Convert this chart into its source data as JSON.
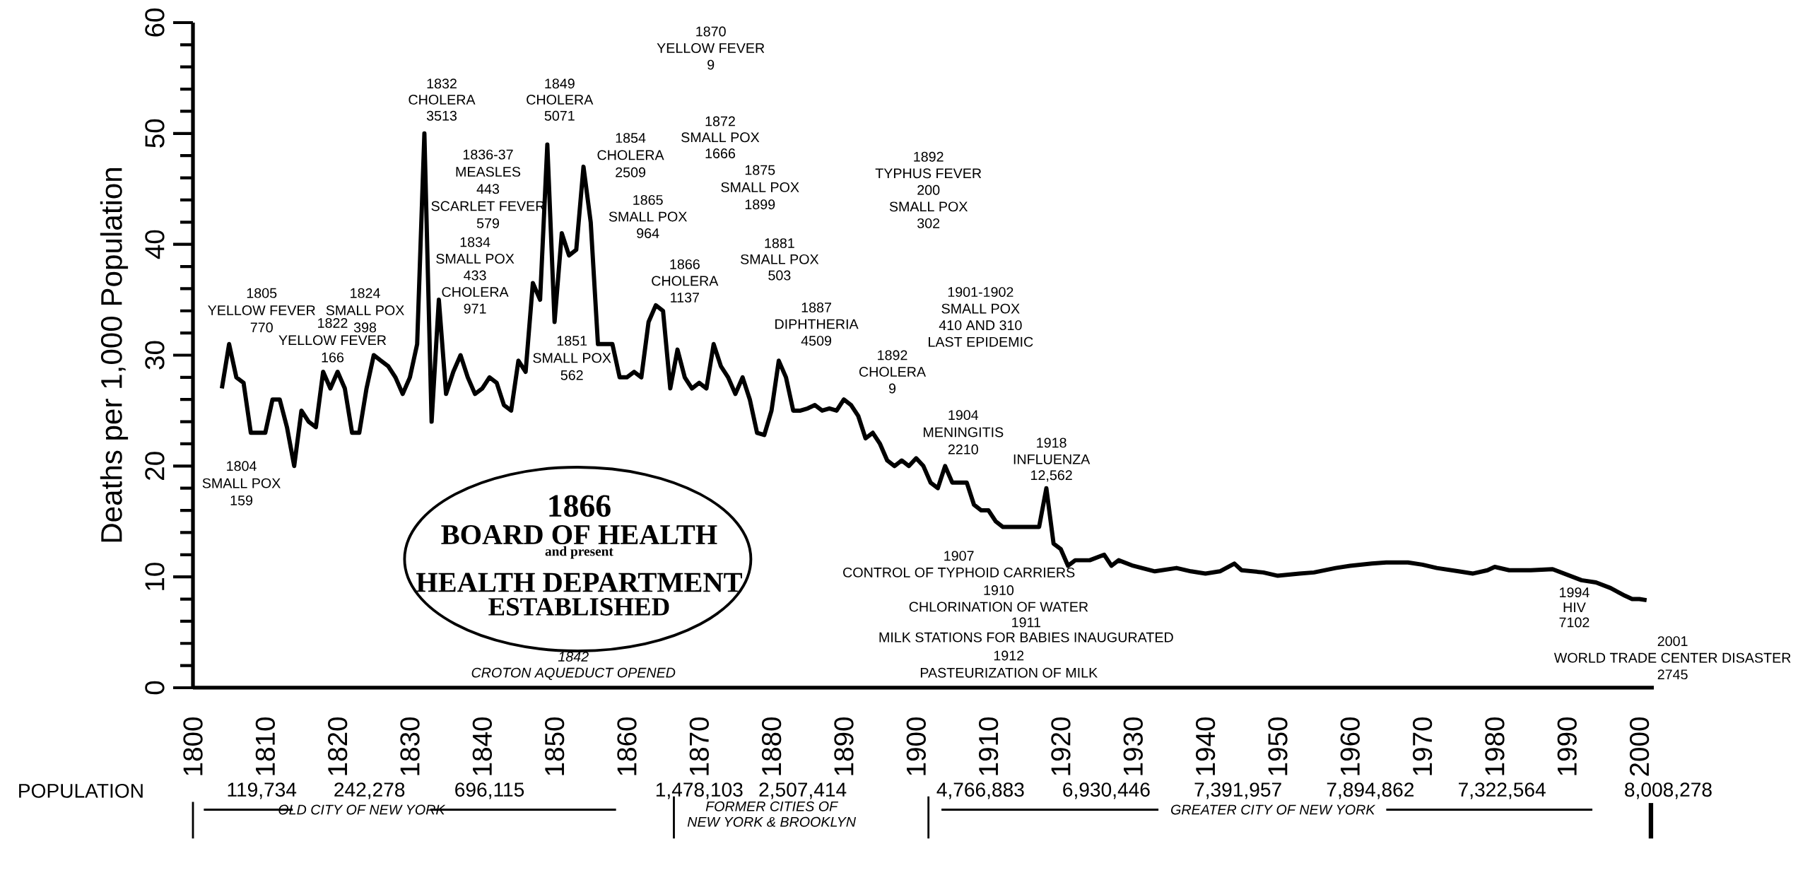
{
  "chart_data": {
    "type": "line",
    "ylabel": "Deaths per 1,000 Population",
    "color": "#000000",
    "xlim": [
      1800,
      2002
    ],
    "ylim": [
      0,
      60
    ],
    "xticks": [
      1800,
      1810,
      1820,
      1830,
      1840,
      1850,
      1860,
      1870,
      1880,
      1890,
      1900,
      1910,
      1920,
      1930,
      1940,
      1950,
      1960,
      1970,
      1980,
      1990,
      2000
    ],
    "yticks": [
      0,
      10,
      20,
      30,
      40,
      50,
      60
    ],
    "x": [
      1804,
      1805,
      1806,
      1807,
      1808,
      1809,
      1810,
      1811,
      1812,
      1813,
      1814,
      1815,
      1816,
      1817,
      1818,
      1819,
      1820,
      1821,
      1822,
      1823,
      1824,
      1825,
      1826,
      1827,
      1828,
      1829,
      1830,
      1831,
      1832,
      1833,
      1834,
      1835,
      1836,
      1837,
      1838,
      1839,
      1840,
      1841,
      1842,
      1843,
      1844,
      1845,
      1846,
      1847,
      1848,
      1849,
      1850,
      1851,
      1852,
      1853,
      1854,
      1855,
      1856,
      1857,
      1858,
      1859,
      1860,
      1861,
      1862,
      1863,
      1864,
      1865,
      1866,
      1867,
      1868,
      1869,
      1870,
      1871,
      1872,
      1873,
      1874,
      1875,
      1876,
      1877,
      1878,
      1879,
      1880,
      1881,
      1882,
      1883,
      1884,
      1885,
      1886,
      1887,
      1888,
      1889,
      1890,
      1891,
      1892,
      1893,
      1894,
      1895,
      1896,
      1897,
      1898,
      1899,
      1900,
      1901,
      1902,
      1903,
      1904,
      1905,
      1906,
      1907,
      1908,
      1909,
      1910,
      1911,
      1912,
      1913,
      1914,
      1915,
      1916,
      1917,
      1918,
      1919,
      1920,
      1921,
      1922,
      1924,
      1926,
      1927,
      1928,
      1930,
      1933,
      1936,
      1938,
      1940,
      1942,
      1944,
      1945,
      1948,
      1950,
      1953,
      1955,
      1958,
      1960,
      1963,
      1965,
      1968,
      1970,
      1972,
      1975,
      1977,
      1979,
      1980,
      1982,
      1985,
      1988,
      1990,
      1992,
      1994,
      1996,
      1998,
      1999,
      2000,
      2001
    ],
    "values": [
      27,
      31,
      28,
      27.5,
      23,
      23,
      23,
      26,
      26,
      23.5,
      20,
      25,
      24,
      23.5,
      28.5,
      27,
      28.5,
      27,
      23,
      23,
      27,
      30,
      29.5,
      29,
      28,
      26.5,
      28,
      31,
      50,
      24,
      35,
      26.5,
      28.5,
      30,
      28,
      26.5,
      27,
      28,
      27.5,
      25.5,
      25,
      29.5,
      28.5,
      36.5,
      35,
      49,
      33,
      41,
      39,
      39.5,
      47,
      42,
      31,
      31,
      31,
      28,
      28,
      28.5,
      28,
      33,
      34.5,
      34,
      27,
      30.5,
      28,
      27,
      27.5,
      27,
      31,
      29,
      28,
      26.5,
      28,
      26,
      23,
      22.8,
      25,
      29.5,
      28,
      25,
      25,
      25.2,
      25.5,
      25,
      25.2,
      25,
      26,
      25.5,
      24.5,
      22.5,
      23,
      22,
      20.5,
      20,
      20.5,
      20,
      20.7,
      20,
      18.5,
      18,
      20,
      18.5,
      18.5,
      18.5,
      16.5,
      16,
      16,
      15,
      14.5,
      14.5,
      14.5,
      14.5,
      14.5,
      14.5,
      18,
      13,
      12.5,
      11,
      11.5,
      11.5,
      12,
      11,
      11.5,
      11,
      10.5,
      10.8,
      10.5,
      10.3,
      10.5,
      11.2,
      10.6,
      10.4,
      10.1,
      10.3,
      10.4,
      10.8,
      11,
      11.2,
      11.3,
      11.3,
      11.1,
      10.8,
      10.5,
      10.3,
      10.6,
      10.9,
      10.6,
      10.6,
      10.7,
      10.2,
      9.7,
      9.5,
      9,
      8.3,
      8,
      8,
      7.9
    ],
    "annotations": [
      "1805",
      "YELLOW FEVER",
      "770",
      "1804",
      "SMALL POX",
      "159",
      "1822",
      "YELLOW FEVER",
      "166",
      "1824",
      "SMALL POX",
      "398",
      "1832",
      "CHOLERA",
      "3513",
      "1836-37",
      "MEASLES",
      "443",
      "SCARLET FEVER",
      "579",
      "1834",
      "SMALL POX",
      "433",
      "CHOLERA",
      "971",
      "1849",
      "CHOLERA",
      "5071",
      "1851",
      "SMALL POX",
      "562",
      "1854",
      "CHOLERA",
      "2509",
      "1865",
      "SMALL POX",
      "964",
      "1866",
      "CHOLERA",
      "1137",
      "1870",
      "YELLOW FEVER",
      "9",
      "1872",
      "SMALL POX",
      "1666",
      "1875",
      "SMALL POX",
      "1899",
      "1881",
      "SMALL POX",
      "503",
      "1887",
      "DIPHTHERIA",
      "4509",
      "1892",
      "CHOLERA",
      "9",
      "1892",
      "TYPHUS FEVER",
      "200",
      "SMALL POX",
      "302",
      "1901-1902",
      "SMALL POX",
      "410 AND 310",
      "LAST EPIDEMIC",
      "1904",
      "MENINGITIS",
      "2210",
      "1918",
      "INFLUENZA",
      "12,562",
      "1907",
      "CONTROL OF TYPHOID CARRIERS",
      "1910",
      "CHLORINATION OF WATER",
      "1911",
      "MILK STATIONS FOR BABIES INAUGURATED",
      "1912",
      "PASTEURIZATION OF MILK",
      "1842",
      "CROTON AQUEDUCT OPENED",
      "1994",
      "HIV",
      "7102",
      "2001",
      "WORLD TRADE CENTER DISASTER",
      "2745",
      "1866",
      "BOARD OF HEALTH",
      "and present",
      "HEALTH DEPARTMENT",
      "ESTABLISHED",
      "POPULATION",
      "119,734",
      "242,278",
      "696,115",
      "1,478,103",
      "2,507,414",
      "4,766,883",
      "6,930,446",
      "7,391,957",
      "7,894,862",
      "7,322,564",
      "8,008,278",
      "OLD CITY OF NEW YORK",
      "FORMER CITIES OF",
      "NEW YORK & BROOKLYN",
      "GREATER CITY OF NEW YORK"
    ]
  }
}
